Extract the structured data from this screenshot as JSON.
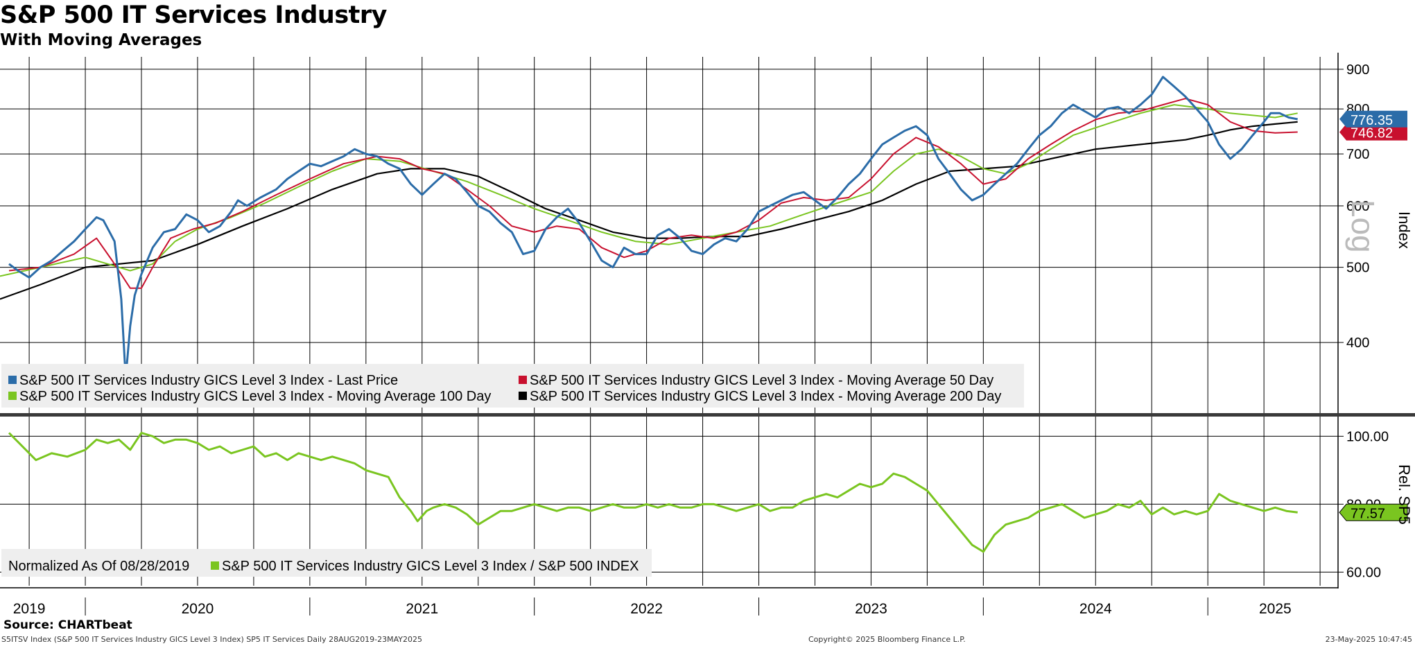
{
  "header": {
    "title": "S&P 500 IT Services Industry",
    "subtitle": "With Moving Averages"
  },
  "footer": {
    "source": "Source: CHARTbeat",
    "ticker_line": "S5ITSV Index (S&P 500 IT Services Industry GICS Level 3 Index) SP5 IT Services  Daily 28AUG2019-23MAY2025",
    "copyright": "Copyright© 2025 Bloomberg Finance L.P.",
    "timestamp": "23-May-2025 10:47:45"
  },
  "colors": {
    "price": "#2b6ca8",
    "ma50": "#c8102e",
    "ma100": "#7ac520",
    "ma200": "#000000",
    "relative": "#7ac520"
  },
  "chart_data": [
    {
      "type": "line",
      "panel": "upper",
      "scale": "log",
      "ylabel": "Index",
      "scale_label": "Log",
      "yticks": [
        400,
        500,
        600,
        700,
        800,
        900
      ],
      "ylim": [
        325,
        930
      ],
      "xlim": [
        2019.62,
        2025.58
      ],
      "year_labels": [
        "2019",
        "2020",
        "2021",
        "2022",
        "2023",
        "2024",
        "2025"
      ],
      "last_values": {
        "price": "776.35",
        "ma50": "746.82"
      },
      "legend": [
        {
          "key": "price",
          "label": "S&P 500 IT Services Industry GICS Level 3 Index - Last Price"
        },
        {
          "key": "ma50",
          "label": "S&P 500 IT Services Industry GICS Level 3 Index - Moving Average 50 Day"
        },
        {
          "key": "ma100",
          "label": "S&P 500 IT Services Industry GICS Level 3 Index - Moving Average 100 Day"
        },
        {
          "key": "ma200",
          "label": "S&P 500 IT Services Industry GICS Level 3 Index - Moving Average 200 Day"
        }
      ],
      "series": [
        {
          "name": "Last Price",
          "key": "price",
          "x": [
            2019.66,
            2019.7,
            2019.75,
            2019.8,
            2019.85,
            2019.9,
            2019.95,
            2020.0,
            2020.05,
            2020.08,
            2020.13,
            2020.16,
            2020.18,
            2020.2,
            2020.22,
            2020.25,
            2020.3,
            2020.35,
            2020.4,
            2020.45,
            2020.5,
            2020.55,
            2020.6,
            2020.65,
            2020.68,
            2020.72,
            2020.78,
            2020.85,
            2020.9,
            2020.95,
            2021.0,
            2021.05,
            2021.1,
            2021.15,
            2021.2,
            2021.25,
            2021.3,
            2021.35,
            2021.4,
            2021.45,
            2021.5,
            2021.55,
            2021.6,
            2021.65,
            2021.7,
            2021.75,
            2021.8,
            2021.85,
            2021.9,
            2021.95,
            2022.0,
            2022.05,
            2022.1,
            2022.15,
            2022.2,
            2022.25,
            2022.3,
            2022.35,
            2022.4,
            2022.45,
            2022.5,
            2022.55,
            2022.6,
            2022.65,
            2022.7,
            2022.75,
            2022.8,
            2022.85,
            2022.9,
            2022.95,
            2023.0,
            2023.05,
            2023.1,
            2023.15,
            2023.2,
            2023.25,
            2023.3,
            2023.35,
            2023.4,
            2023.45,
            2023.5,
            2023.55,
            2023.6,
            2023.65,
            2023.7,
            2023.75,
            2023.8,
            2023.85,
            2023.9,
            2023.95,
            2024.0,
            2024.05,
            2024.1,
            2024.15,
            2024.2,
            2024.25,
            2024.3,
            2024.35,
            2024.4,
            2024.45,
            2024.5,
            2024.55,
            2024.6,
            2024.65,
            2024.7,
            2024.75,
            2024.8,
            2024.85,
            2024.9,
            2024.95,
            2025.0,
            2025.05,
            2025.1,
            2025.15,
            2025.2,
            2025.25,
            2025.28,
            2025.32,
            2025.36,
            2025.4
          ],
          "y": [
            505,
            495,
            485,
            500,
            510,
            525,
            540,
            560,
            580,
            575,
            540,
            455,
            360,
            420,
            460,
            490,
            530,
            555,
            560,
            585,
            575,
            555,
            565,
            590,
            610,
            600,
            615,
            630,
            650,
            665,
            680,
            675,
            685,
            695,
            710,
            700,
            695,
            680,
            670,
            640,
            620,
            640,
            660,
            650,
            625,
            600,
            590,
            570,
            555,
            520,
            525,
            560,
            580,
            595,
            570,
            540,
            510,
            500,
            530,
            520,
            520,
            550,
            560,
            545,
            525,
            520,
            535,
            545,
            540,
            560,
            590,
            600,
            610,
            620,
            625,
            610,
            595,
            615,
            640,
            660,
            690,
            720,
            735,
            750,
            760,
            740,
            690,
            660,
            630,
            610,
            620,
            640,
            660,
            680,
            710,
            740,
            760,
            790,
            810,
            795,
            780,
            800,
            805,
            790,
            810,
            835,
            880,
            855,
            830,
            800,
            770,
            720,
            690,
            710,
            740,
            770,
            790,
            790,
            780,
            776
          ]
        },
        {
          "name": "Moving Average 50 Day",
          "key": "ma50",
          "x": [
            2019.66,
            2019.8,
            2019.95,
            2020.05,
            2020.12,
            2020.2,
            2020.25,
            2020.3,
            2020.38,
            2020.48,
            2020.58,
            2020.7,
            2020.85,
            2021.0,
            2021.15,
            2021.3,
            2021.4,
            2021.5,
            2021.6,
            2021.7,
            2021.8,
            2021.9,
            2022.0,
            2022.1,
            2022.2,
            2022.3,
            2022.4,
            2022.5,
            2022.6,
            2022.7,
            2022.8,
            2022.9,
            2023.0,
            2023.1,
            2023.2,
            2023.3,
            2023.4,
            2023.5,
            2023.6,
            2023.7,
            2023.8,
            2023.9,
            2024.0,
            2024.1,
            2024.2,
            2024.3,
            2024.4,
            2024.5,
            2024.6,
            2024.7,
            2024.8,
            2024.9,
            2025.0,
            2025.1,
            2025.2,
            2025.3,
            2025.4
          ],
          "y": [
            495,
            500,
            520,
            545,
            510,
            470,
            470,
            500,
            545,
            560,
            570,
            590,
            620,
            650,
            680,
            695,
            690,
            670,
            660,
            630,
            600,
            565,
            555,
            565,
            560,
            530,
            515,
            525,
            545,
            550,
            545,
            555,
            575,
            605,
            615,
            610,
            615,
            650,
            700,
            735,
            715,
            680,
            640,
            650,
            690,
            720,
            750,
            775,
            790,
            795,
            810,
            825,
            810,
            770,
            750,
            745,
            747
          ]
        },
        {
          "name": "Moving Average 100 Day",
          "key": "ma100",
          "x": [
            2019.62,
            2019.8,
            2020.0,
            2020.1,
            2020.2,
            2020.3,
            2020.4,
            2020.5,
            2020.65,
            2020.8,
            2020.95,
            2021.1,
            2021.25,
            2021.4,
            2021.55,
            2021.7,
            2021.85,
            2022.0,
            2022.15,
            2022.3,
            2022.45,
            2022.6,
            2022.75,
            2022.9,
            2023.05,
            2023.2,
            2023.35,
            2023.5,
            2023.6,
            2023.7,
            2023.8,
            2023.9,
            2024.0,
            2024.1,
            2024.2,
            2024.3,
            2024.4,
            2024.55,
            2024.7,
            2024.85,
            2025.0,
            2025.1,
            2025.2,
            2025.3,
            2025.4
          ],
          "y": [
            487,
            500,
            515,
            505,
            495,
            505,
            540,
            560,
            580,
            605,
            635,
            665,
            690,
            685,
            665,
            645,
            620,
            595,
            575,
            555,
            540,
            535,
            545,
            555,
            565,
            585,
            605,
            625,
            665,
            700,
            710,
            695,
            670,
            660,
            680,
            710,
            740,
            765,
            790,
            810,
            800,
            790,
            785,
            780,
            790
          ]
        },
        {
          "name": "Moving Average 200 Day",
          "key": "ma200",
          "x": [
            2019.62,
            2019.8,
            2020.0,
            2020.15,
            2020.3,
            2020.5,
            2020.7,
            2020.9,
            2021.1,
            2021.3,
            2021.45,
            2021.6,
            2021.75,
            2021.9,
            2022.05,
            2022.2,
            2022.35,
            2022.5,
            2022.65,
            2022.8,
            2022.95,
            2023.1,
            2023.25,
            2023.4,
            2023.55,
            2023.7,
            2023.85,
            2024.0,
            2024.15,
            2024.3,
            2024.5,
            2024.7,
            2024.9,
            2025.0,
            2025.1,
            2025.2,
            2025.3,
            2025.4
          ],
          "y": [
            455,
            475,
            500,
            505,
            510,
            535,
            565,
            595,
            630,
            660,
            670,
            670,
            655,
            625,
            595,
            575,
            555,
            545,
            545,
            548,
            548,
            560,
            575,
            590,
            610,
            640,
            665,
            670,
            675,
            690,
            710,
            720,
            730,
            740,
            752,
            760,
            765,
            770
          ]
        }
      ]
    },
    {
      "type": "line",
      "panel": "lower",
      "ylabel": "Rel. SP5",
      "yticks": [
        "100.00",
        "80.00",
        "60.00"
      ],
      "ylim": [
        56,
        106
      ],
      "xlim": [
        2019.62,
        2025.58
      ],
      "last_value": "77.57",
      "legend": [
        {
          "key": "note",
          "label": "Normalized As Of 08/28/2019"
        },
        {
          "key": "relative",
          "label": "S&P 500 IT Services Industry GICS Level 3 Index / S&P 500 INDEX"
        }
      ],
      "series": [
        {
          "name": "S&P 500 IT Services / S&P 500",
          "key": "relative",
          "x": [
            2019.66,
            2019.72,
            2019.78,
            2019.85,
            2019.92,
            2020.0,
            2020.05,
            2020.1,
            2020.15,
            2020.2,
            2020.25,
            2020.3,
            2020.35,
            2020.4,
            2020.45,
            2020.5,
            2020.55,
            2020.6,
            2020.65,
            2020.7,
            2020.75,
            2020.8,
            2020.85,
            2020.9,
            2020.95,
            2021.0,
            2021.05,
            2021.1,
            2021.15,
            2021.2,
            2021.25,
            2021.3,
            2021.35,
            2021.4,
            2021.45,
            2021.48,
            2021.52,
            2021.55,
            2021.6,
            2021.65,
            2021.7,
            2021.75,
            2021.8,
            2021.85,
            2021.9,
            2021.95,
            2022.0,
            2022.05,
            2022.1,
            2022.15,
            2022.2,
            2022.25,
            2022.3,
            2022.35,
            2022.4,
            2022.45,
            2022.5,
            2022.55,
            2022.6,
            2022.65,
            2022.7,
            2022.75,
            2022.8,
            2022.85,
            2022.9,
            2022.95,
            2023.0,
            2023.05,
            2023.1,
            2023.15,
            2023.2,
            2023.25,
            2023.3,
            2023.35,
            2023.4,
            2023.45,
            2023.5,
            2023.55,
            2023.6,
            2023.65,
            2023.7,
            2023.75,
            2023.8,
            2023.85,
            2023.9,
            2023.95,
            2024.0,
            2024.05,
            2024.1,
            2024.15,
            2024.2,
            2024.25,
            2024.3,
            2024.35,
            2024.4,
            2024.45,
            2024.5,
            2024.55,
            2024.6,
            2024.65,
            2024.7,
            2024.75,
            2024.8,
            2024.85,
            2024.9,
            2024.95,
            2025.0,
            2025.05,
            2025.1,
            2025.15,
            2025.2,
            2025.25,
            2025.3,
            2025.35,
            2025.4
          ],
          "y": [
            101,
            97,
            93,
            95,
            94,
            96,
            99,
            98,
            99,
            96,
            101,
            100,
            98,
            99,
            99,
            98,
            96,
            97,
            95,
            96,
            97,
            94,
            95,
            93,
            95,
            94,
            93,
            94,
            93,
            92,
            90,
            89,
            88,
            82,
            78,
            75,
            78,
            79,
            80,
            79,
            77,
            74,
            76,
            78,
            78,
            79,
            80,
            79,
            78,
            79,
            79,
            78,
            79,
            80,
            79,
            79,
            80,
            79,
            80,
            79,
            79,
            80,
            80,
            79,
            78,
            79,
            80,
            78,
            79,
            79,
            81,
            82,
            83,
            82,
            84,
            86,
            85,
            86,
            89,
            88,
            86,
            84,
            80,
            76,
            72,
            68,
            66,
            71,
            74,
            75,
            76,
            78,
            79,
            80,
            78,
            76,
            77,
            78,
            80,
            79,
            81,
            77,
            79,
            77,
            78,
            77,
            78,
            83,
            81,
            80,
            79,
            78,
            79,
            78,
            77.6
          ]
        }
      ]
    }
  ]
}
